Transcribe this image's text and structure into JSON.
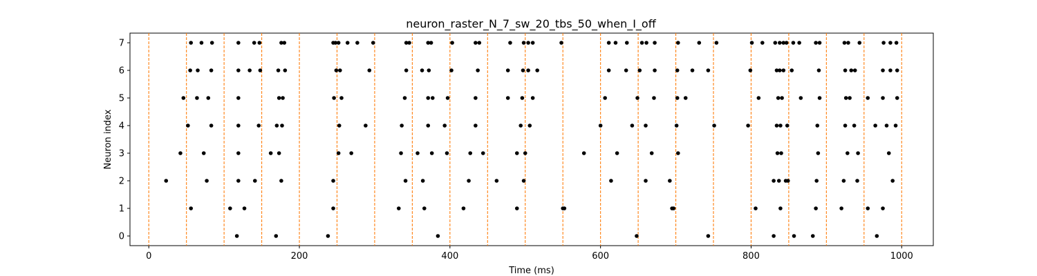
{
  "chart_data": {
    "type": "scatter",
    "title": "neuron_raster_N_7_sw_20_tbs_50_when_I_off",
    "xlabel": "Time (ms)",
    "ylabel": "Neuron index",
    "xlim": [
      -25,
      1042
    ],
    "ylim": [
      -0.35,
      7.35
    ],
    "xticks": [
      0,
      200,
      400,
      600,
      800,
      1000
    ],
    "yticks": [
      0,
      1,
      2,
      3,
      4,
      5,
      6,
      7
    ],
    "grid": false,
    "legend": "none",
    "marker_color": "#000000",
    "vline_color": "#ff7f0e",
    "vline_style": "dashed",
    "vlines_ms": [
      0,
      50,
      100,
      150,
      200,
      250,
      300,
      350,
      400,
      450,
      500,
      550,
      600,
      650,
      700,
      750,
      800,
      850,
      900,
      950,
      1000
    ],
    "spikes": [
      {
        "neuron": 7,
        "times_ms": [
          56,
          70,
          84,
          119,
          140,
          147,
          176,
          180,
          245,
          248,
          252,
          264,
          277,
          298,
          342,
          346,
          371,
          375,
          403,
          434,
          439,
          480,
          498,
          504,
          510,
          548,
          611,
          620,
          635,
          655,
          661,
          672,
          703,
          731,
          754,
          801,
          815,
          832,
          838,
          843,
          847,
          856,
          864,
          886,
          891,
          924,
          929,
          944,
          976,
          985,
          993
        ]
      },
      {
        "neuron": 6,
        "times_ms": [
          55,
          65,
          83,
          119,
          134,
          148,
          172,
          181,
          249,
          254,
          293,
          342,
          363,
          372,
          402,
          437,
          477,
          497,
          504,
          516,
          611,
          634,
          652,
          672,
          702,
          722,
          743,
          799,
          834,
          838,
          843,
          854,
          890,
          925,
          933,
          938,
          975,
          985,
          994
        ]
      },
      {
        "neuron": 5,
        "times_ms": [
          46,
          64,
          79,
          119,
          173,
          178,
          246,
          256,
          340,
          371,
          377,
          397,
          434,
          477,
          496,
          510,
          606,
          649,
          671,
          702,
          713,
          810,
          836,
          841,
          866,
          891,
          926,
          931,
          955,
          975,
          994
        ]
      },
      {
        "neuron": 4,
        "times_ms": [
          52,
          83,
          119,
          146,
          170,
          177,
          253,
          288,
          336,
          371,
          393,
          434,
          494,
          506,
          600,
          642,
          660,
          701,
          751,
          796,
          834,
          839,
          848,
          888,
          925,
          937,
          965,
          980,
          992
        ]
      },
      {
        "neuron": 3,
        "times_ms": [
          42,
          73,
          119,
          162,
          173,
          252,
          269,
          335,
          357,
          376,
          396,
          427,
          444,
          489,
          500,
          578,
          622,
          668,
          703,
          835,
          840,
          889,
          928,
          942,
          983
        ]
      },
      {
        "neuron": 2,
        "times_ms": [
          23,
          77,
          119,
          141,
          176,
          245,
          341,
          364,
          425,
          462,
          498,
          614,
          660,
          692,
          830,
          837,
          846,
          849,
          887,
          923,
          941,
          988
        ]
      },
      {
        "neuron": 1,
        "times_ms": [
          56,
          108,
          127,
          245,
          332,
          366,
          418,
          489,
          550,
          552,
          695,
          697,
          806,
          839,
          886,
          920,
          955,
          975
        ]
      },
      {
        "neuron": 0,
        "times_ms": [
          117,
          169,
          238,
          384,
          648,
          743,
          830,
          857,
          882,
          967
        ]
      }
    ]
  }
}
